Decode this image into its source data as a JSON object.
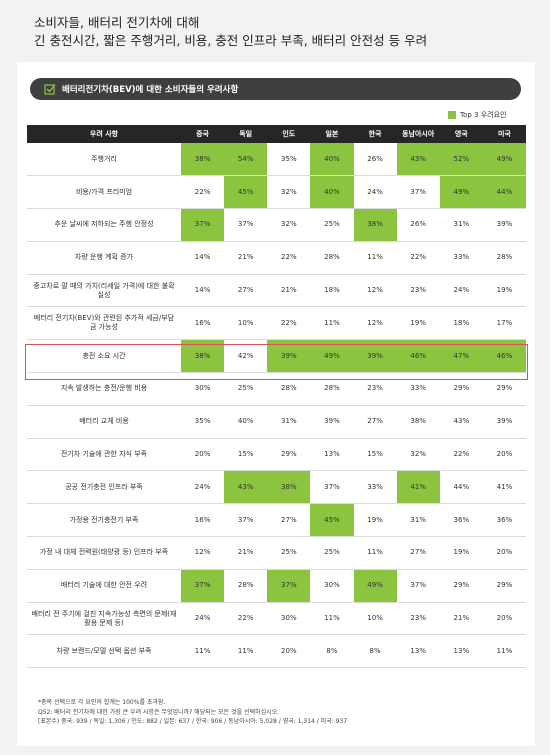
{
  "headline": {
    "line1": "소비자들, 배터리 전기차에 대해",
    "line2": "긴 충전시간, 짧은 주행거리, 비용, 충전 인프라 부족, 배터리 안전성 등 우려"
  },
  "section_title": "배터리전기차(BEV)에 대한 소비자들의 우려사항",
  "legend": {
    "label": "Top 3 우려요인",
    "color": "#8bc53f"
  },
  "colors": {
    "highlight": "#8bc53f",
    "header_bg": "#262626",
    "section_bg": "#3f3f3f",
    "outline": "#d9544f"
  },
  "chart_data": {
    "type": "table",
    "row_header": "우려 사항",
    "columns": [
      "중국",
      "독일",
      "인도",
      "일본",
      "한국",
      "동남아시아",
      "영국",
      "미국"
    ],
    "rows": [
      {
        "label": "주행거리",
        "values": [
          "38%",
          "54%",
          "35%",
          "40%",
          "26%",
          "43%",
          "52%",
          "49%"
        ],
        "top3": [
          true,
          true,
          false,
          true,
          false,
          true,
          true,
          true
        ]
      },
      {
        "label": "비용/가격 프리미엄",
        "values": [
          "22%",
          "45%",
          "32%",
          "40%",
          "24%",
          "37%",
          "49%",
          "44%"
        ],
        "top3": [
          false,
          true,
          false,
          true,
          false,
          false,
          true,
          true
        ]
      },
      {
        "label": "추운 날씨에 저하되는 주행 안정성",
        "values": [
          "37%",
          "37%",
          "32%",
          "25%",
          "38%",
          "26%",
          "31%",
          "39%"
        ],
        "top3": [
          true,
          false,
          false,
          false,
          true,
          false,
          false,
          false
        ]
      },
      {
        "label": "차량 운행 계획 증가",
        "values": [
          "14%",
          "21%",
          "22%",
          "28%",
          "11%",
          "22%",
          "33%",
          "28%"
        ],
        "top3": [
          false,
          false,
          false,
          false,
          false,
          false,
          false,
          false
        ]
      },
      {
        "label": "중고차로 팔 때의 가치(리세일 가격)에 대한 불확실성",
        "values": [
          "14%",
          "27%",
          "21%",
          "18%",
          "12%",
          "23%",
          "24%",
          "19%"
        ],
        "top3": [
          false,
          false,
          false,
          false,
          false,
          false,
          false,
          false
        ]
      },
      {
        "label": "배터리 전기차(BEV)와 관련된 추가적 세금/부담금 가능성",
        "values": [
          "16%",
          "10%",
          "22%",
          "11%",
          "12%",
          "19%",
          "18%",
          "17%"
        ],
        "top3": [
          false,
          false,
          false,
          false,
          false,
          false,
          false,
          false
        ]
      },
      {
        "label": "충전 소요 시간",
        "values": [
          "38%",
          "42%",
          "39%",
          "49%",
          "39%",
          "46%",
          "47%",
          "46%"
        ],
        "top3": [
          true,
          false,
          true,
          true,
          true,
          true,
          true,
          true
        ],
        "outlined": true
      },
      {
        "label": "지속 발생하는 충전/운행 비용",
        "values": [
          "30%",
          "25%",
          "28%",
          "28%",
          "23%",
          "33%",
          "29%",
          "29%"
        ],
        "top3": [
          false,
          false,
          false,
          false,
          false,
          false,
          false,
          false
        ]
      },
      {
        "label": "배터리 교체 비용",
        "values": [
          "35%",
          "40%",
          "31%",
          "39%",
          "27%",
          "38%",
          "43%",
          "39%"
        ],
        "top3": [
          false,
          false,
          false,
          false,
          false,
          false,
          false,
          false
        ]
      },
      {
        "label": "전기차 기술에 관한 지식 부족",
        "values": [
          "20%",
          "15%",
          "29%",
          "13%",
          "15%",
          "32%",
          "22%",
          "20%"
        ],
        "top3": [
          false,
          false,
          false,
          false,
          false,
          false,
          false,
          false
        ]
      },
      {
        "label": "공공 전기충전 인프라 부족",
        "values": [
          "24%",
          "43%",
          "38%",
          "37%",
          "33%",
          "41%",
          "44%",
          "41%"
        ],
        "top3": [
          false,
          true,
          true,
          false,
          false,
          true,
          false,
          false
        ]
      },
      {
        "label": "가정용 전기충전기 부족",
        "values": [
          "16%",
          "37%",
          "27%",
          "45%",
          "19%",
          "31%",
          "36%",
          "36%"
        ],
        "top3": [
          false,
          false,
          false,
          true,
          false,
          false,
          false,
          false
        ]
      },
      {
        "label": "가정 내 대체 전력원(태양광 등) 인프라 부족",
        "values": [
          "12%",
          "21%",
          "25%",
          "25%",
          "11%",
          "27%",
          "19%",
          "20%"
        ],
        "top3": [
          false,
          false,
          false,
          false,
          false,
          false,
          false,
          false
        ]
      },
      {
        "label": "배터리 기술에 대한 안전 우려",
        "values": [
          "37%",
          "28%",
          "37%",
          "30%",
          "49%",
          "37%",
          "29%",
          "29%"
        ],
        "top3": [
          true,
          false,
          true,
          false,
          true,
          false,
          false,
          false
        ]
      },
      {
        "label": "배터리 전 주기에 걸친 지속가능성 측면의 문제(재활용 문제 등)",
        "values": [
          "24%",
          "22%",
          "30%",
          "11%",
          "10%",
          "23%",
          "21%",
          "20%"
        ],
        "top3": [
          false,
          false,
          false,
          false,
          false,
          false,
          false,
          false
        ]
      },
      {
        "label": "차량 브랜드/모델 선택 옵션 부족",
        "values": [
          "11%",
          "11%",
          "20%",
          "8%",
          "8%",
          "13%",
          "13%",
          "11%"
        ],
        "top3": [
          false,
          false,
          false,
          false,
          false,
          false,
          false,
          false
        ]
      }
    ]
  },
  "notes": [
    "*중복 선택으로 각 요인의 합계는 100%를 초과함.",
    "Q52: 배터리 전기차에 대한 가장 큰 우려 사항은 무엇입니까? 해당되는 모든 것을 선택하십시오.",
    "[표본수) 중국: 939 / 독일: 1,306 / 인도: 882 / 일본: 637 / 한국: 906 / 동남아시아: 5,028 / 영국: 1,314 / 미국: 937"
  ]
}
